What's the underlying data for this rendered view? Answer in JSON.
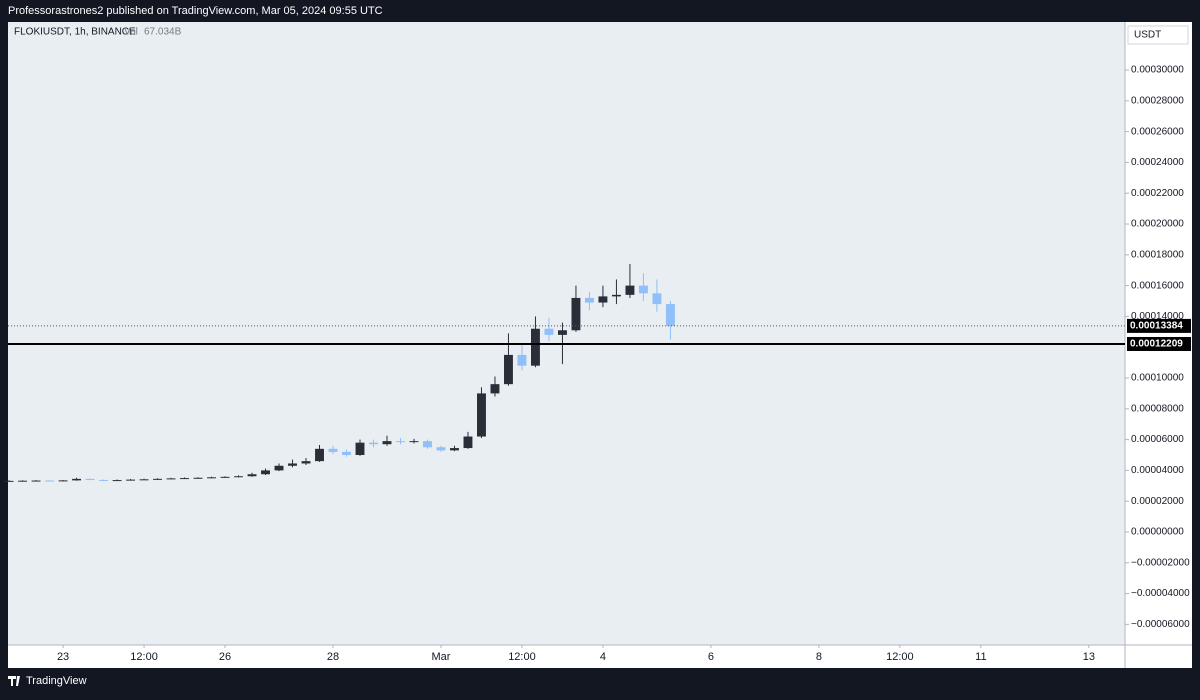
{
  "header": {
    "publisher": "Professorastrones2 published on TradingView.com, Mar 05, 2024 09:55 UTC"
  },
  "footer": {
    "brand": "TradingView"
  },
  "chart_data": {
    "type": "candlestick",
    "symbol": "FLOKIUSDT, 1h, BINANCE",
    "volume_label": "Vol",
    "volume": "67.034B",
    "currency": "USDT",
    "up_color": "#2a2e39",
    "down_color": "#90bff9",
    "grid": false,
    "xlim": [
      21.98,
      42.67
    ],
    "xticks": [
      23,
      {
        "value": 24.5,
        "label": "12:00"
      },
      26,
      28,
      {
        "value": 30,
        "label": "Mar"
      },
      {
        "value": 31.5,
        "label": "12:00"
      },
      {
        "value": 33,
        "label": "4"
      },
      {
        "value": 35,
        "label": "6"
      },
      {
        "value": 37,
        "label": "8"
      },
      {
        "value": 38.5,
        "label": "12:00"
      },
      {
        "value": 40,
        "label": "11"
      },
      {
        "value": 42,
        "label": "13"
      }
    ],
    "ylim": [
      -7.34e-05,
      0.0003312
    ],
    "yticks": [
      {
        "value": 0.0003,
        "label": "0.00030000"
      },
      {
        "value": 0.00028,
        "label": "0.00028000"
      },
      {
        "value": 0.00026,
        "label": "0.00026000"
      },
      {
        "value": 0.00024,
        "label": "0.00024000"
      },
      {
        "value": 0.00022,
        "label": "0.00022000"
      },
      {
        "value": 0.0002,
        "label": "0.00020000"
      },
      {
        "value": 0.00018,
        "label": "0.00018000"
      },
      {
        "value": 0.00016,
        "label": "0.00016000"
      },
      {
        "value": 0.00014,
        "label": "0.00014000"
      },
      {
        "value": 0.0001,
        "label": "0.00010000"
      },
      {
        "value": 8e-05,
        "label": "0.00008000"
      },
      {
        "value": 6e-05,
        "label": "0.00006000"
      },
      {
        "value": 4e-05,
        "label": "0.00004000"
      },
      {
        "value": 2e-05,
        "label": "0.00002000"
      },
      {
        "value": 0,
        "label": "0.00000000"
      },
      {
        "value": -2e-05,
        "label": "−0.00002000"
      },
      {
        "value": -4e-05,
        "label": "−0.00004000"
      },
      {
        "value": -6e-05,
        "label": "−0.00006000"
      }
    ],
    "last_price": 0.00013384,
    "level": 0.00012209,
    "x": [
      22,
      22.25,
      22.5,
      22.75,
      23,
      23.25,
      23.5,
      23.75,
      24,
      24.25,
      24.5,
      24.75,
      25,
      25.25,
      25.5,
      25.75,
      26,
      26.25,
      26.5,
      26.75,
      27,
      27.25,
      27.5,
      27.75,
      28,
      28.25,
      28.5,
      28.75,
      29,
      29.25,
      29.5,
      29.75,
      30,
      30.25,
      30.5,
      30.75,
      31,
      31.25,
      31.5,
      31.75,
      32,
      32.25,
      32.5,
      32.75,
      33,
      33.25,
      33.5,
      33.75,
      34,
      34.25
    ],
    "open": [
      3.31e-05,
      3.32e-05,
      3.33e-05,
      3.34e-05,
      3.33e-05,
      3.35e-05,
      3.45e-05,
      3.38e-05,
      3.36e-05,
      3.37e-05,
      3.4e-05,
      3.42e-05,
      3.45e-05,
      3.48e-05,
      3.5e-05,
      3.52e-05,
      3.55e-05,
      3.58e-05,
      3.62e-05,
      3.75e-05,
      4e-05,
      4.3e-05,
      4.45e-05,
      4.6e-05,
      5.4e-05,
      5.2e-05,
      5e-05,
      5.8e-05,
      5.7e-05,
      5.9e-05,
      5.85e-05,
      5.9e-05,
      5.5e-05,
      5.3e-05,
      5.45e-05,
      6.2e-05,
      9e-05,
      9.6e-05,
      0.000115,
      0.000108,
      0.000132,
      0.000128,
      0.000131,
      0.000152,
      0.000149,
      0.000153,
      0.000154,
      0.00016,
      0.000155,
      0.000148
    ],
    "high": [
      3.36e-05,
      3.36e-05,
      3.37e-05,
      3.37e-05,
      3.38e-05,
      3.52e-05,
      3.48e-05,
      3.41e-05,
      3.41e-05,
      3.44e-05,
      3.46e-05,
      3.49e-05,
      3.52e-05,
      3.54e-05,
      3.56e-05,
      3.59e-05,
      3.62e-05,
      3.68e-05,
      3.85e-05,
      4.12e-05,
      4.45e-05,
      4.7e-05,
      4.8e-05,
      5.65e-05,
      5.6e-05,
      5.35e-05,
      6e-05,
      6e-05,
      6.25e-05,
      6.1e-05,
      6.05e-05,
      6e-05,
      5.6e-05,
      5.6e-05,
      6.5e-05,
      9.4e-05,
      0.000101,
      0.000129,
      0.000122,
      0.00014,
      0.000139,
      0.000136,
      0.00016,
      0.000156,
      0.00016,
      0.000164,
      0.000174,
      0.000168,
      0.000164,
      0.00015
    ],
    "low": [
      3.29e-05,
      3.3e-05,
      3.31e-05,
      3.31e-05,
      3.31e-05,
      3.33e-05,
      3.35e-05,
      3.33e-05,
      3.34e-05,
      3.35e-05,
      3.38e-05,
      3.4e-05,
      3.43e-05,
      3.45e-05,
      3.47e-05,
      3.49e-05,
      3.52e-05,
      3.54e-05,
      3.58e-05,
      3.7e-05,
      3.95e-05,
      4.2e-05,
      4.35e-05,
      4.55e-05,
      5.05e-05,
      4.9e-05,
      4.95e-05,
      5.5e-05,
      5.6e-05,
      5.7e-05,
      5.75e-05,
      5.4e-05,
      5.2e-05,
      5.25e-05,
      5.4e-05,
      6.1e-05,
      8.8e-05,
      9.5e-05,
      0.000105,
      0.000107,
      0.000124,
      0.000109,
      0.00013,
      0.000144,
      0.000146,
      0.000148,
      0.000152,
      0.00015,
      0.000143,
      0.000125
    ],
    "close": [
      3.32e-05,
      3.33e-05,
      3.34e-05,
      3.33e-05,
      3.35e-05,
      3.45e-05,
      3.38e-05,
      3.36e-05,
      3.37e-05,
      3.4e-05,
      3.42e-05,
      3.45e-05,
      3.48e-05,
      3.5e-05,
      3.52e-05,
      3.55e-05,
      3.58e-05,
      3.62e-05,
      3.75e-05,
      4e-05,
      4.3e-05,
      4.45e-05,
      4.6e-05,
      5.4e-05,
      5.2e-05,
      5e-05,
      5.8e-05,
      5.7e-05,
      5.9e-05,
      5.85e-05,
      5.9e-05,
      5.5e-05,
      5.3e-05,
      5.45e-05,
      6.2e-05,
      9e-05,
      9.6e-05,
      0.000115,
      0.000108,
      0.000132,
      0.000128,
      0.000131,
      0.000152,
      0.000149,
      0.000153,
      0.000154,
      0.00016,
      0.000155,
      0.000148,
      0.0001338
    ]
  }
}
